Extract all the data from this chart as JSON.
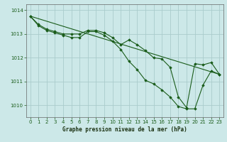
{
  "background_color": "#cce8e8",
  "grid_color": "#aacccc",
  "line_color": "#1a5c1a",
  "marker_color": "#1a5c1a",
  "xlabel": "Graphe pression niveau de la mer (hPa)",
  "ylim": [
    1009.5,
    1014.25
  ],
  "xlim": [
    -0.5,
    23.5
  ],
  "yticks": [
    1010,
    1011,
    1012,
    1013,
    1014
  ],
  "xticks": [
    0,
    1,
    2,
    3,
    4,
    5,
    6,
    7,
    8,
    9,
    10,
    11,
    12,
    13,
    14,
    15,
    16,
    17,
    18,
    19,
    20,
    21,
    22,
    23
  ],
  "series": [
    {
      "x": [
        0,
        1,
        2,
        3,
        4,
        5,
        6,
        7,
        8,
        9,
        10,
        11,
        12,
        13,
        14,
        15,
        16,
        17,
        18,
        19,
        20,
        21,
        22,
        23
      ],
      "y": [
        1013.75,
        1013.35,
        1013.15,
        1013.05,
        1012.95,
        1012.85,
        1012.85,
        1013.1,
        1013.1,
        1012.95,
        1012.7,
        1012.35,
        1011.85,
        1011.5,
        1011.05,
        1010.9,
        1010.65,
        1010.35,
        1009.95,
        1009.85,
        1009.85,
        1010.85,
        1011.45,
        1011.3
      ]
    },
    {
      "x": [
        0,
        1,
        2,
        3,
        4,
        5,
        6,
        7,
        8,
        9,
        10,
        11,
        12,
        13,
        14,
        15,
        16,
        17,
        18,
        19,
        20,
        21,
        22,
        23
      ],
      "y": [
        1013.75,
        1013.4,
        1013.2,
        1013.1,
        1013.0,
        1013.0,
        1013.0,
        1013.15,
        1013.15,
        1013.05,
        1012.85,
        1012.55,
        1012.75,
        1012.55,
        1012.3,
        1012.0,
        1011.95,
        1011.6,
        1010.35,
        1009.9,
        1011.75,
        1011.7,
        1011.8,
        1011.3
      ]
    },
    {
      "x": [
        0,
        23
      ],
      "y": [
        1013.75,
        1011.3
      ]
    }
  ]
}
